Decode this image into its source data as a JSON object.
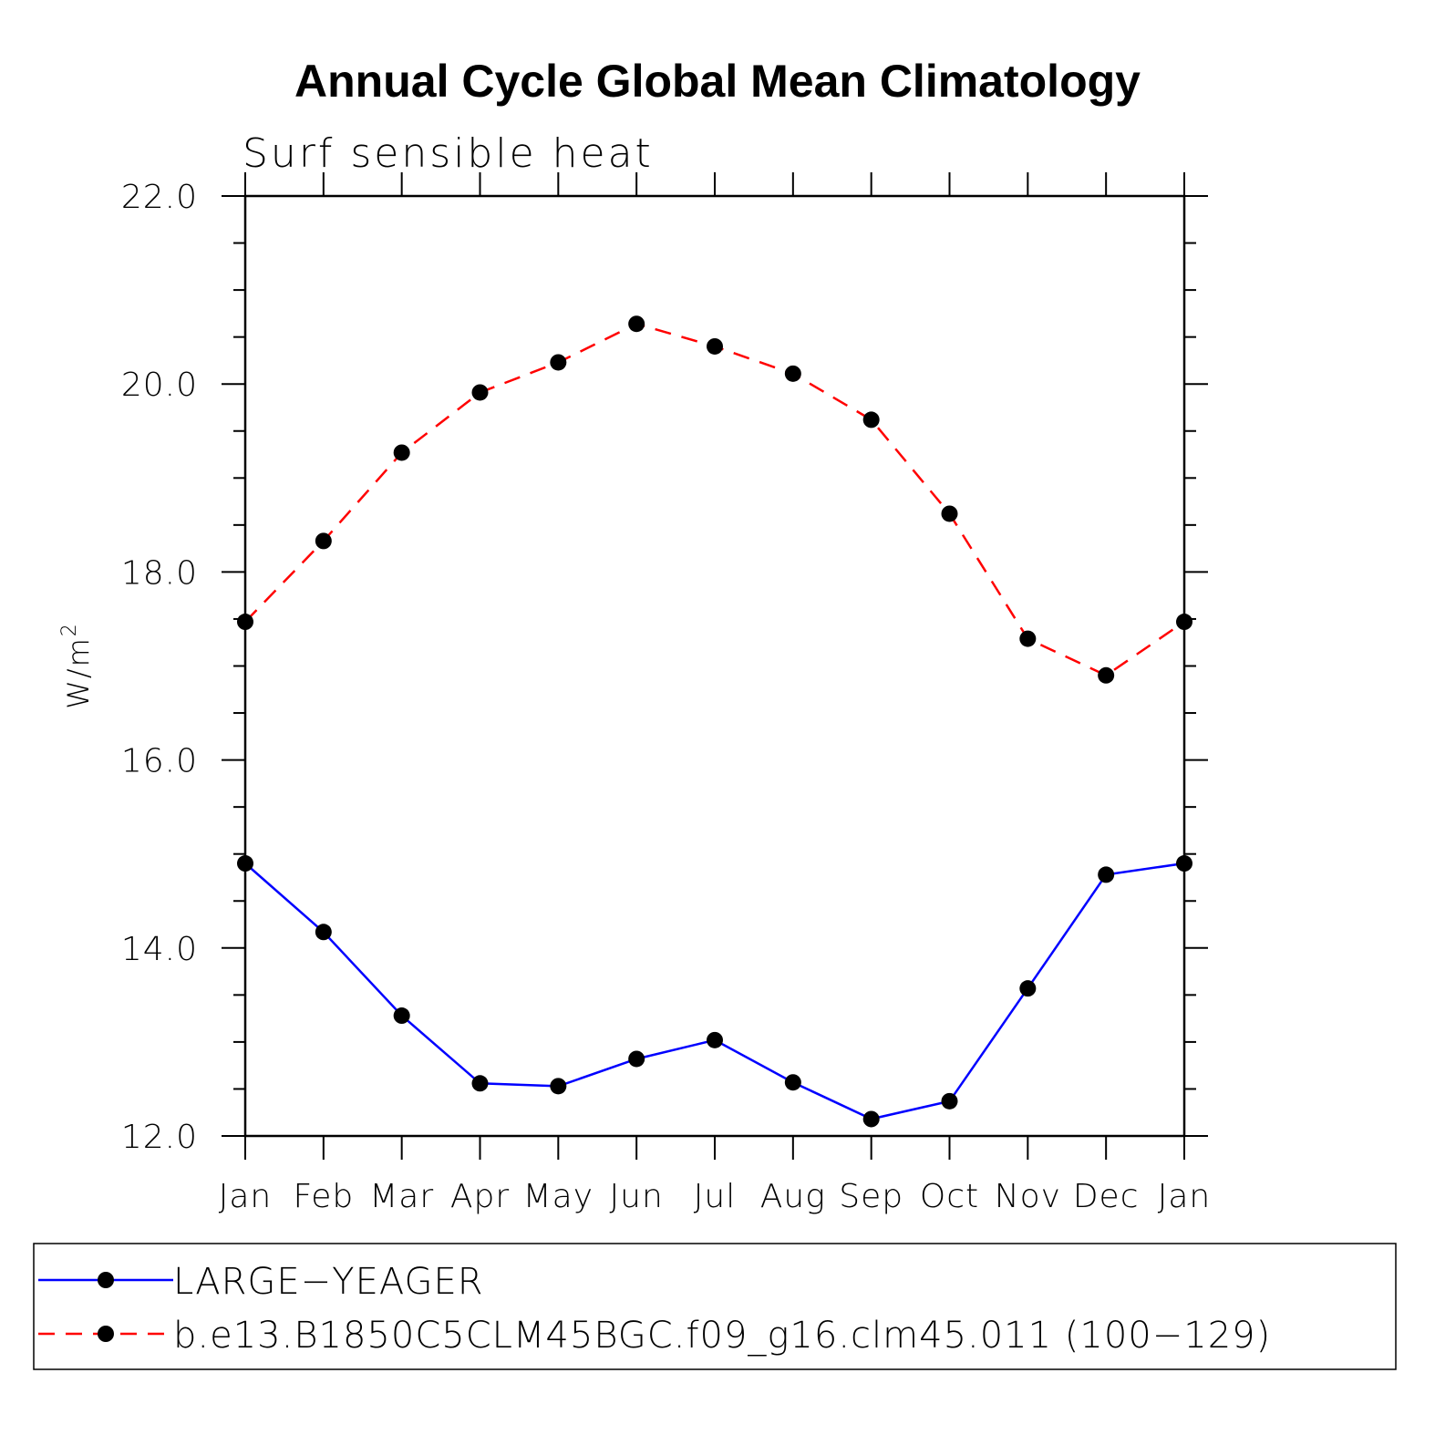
{
  "chart_data": {
    "type": "line",
    "title": "Annual Cycle Global Mean Climatology",
    "subtitle": "Surf sensible heat",
    "ylabel": "W/m",
    "ylabel_superscript": "2",
    "xlabel": "",
    "ylim": [
      12.0,
      22.0
    ],
    "yticks": [
      "12.0",
      "14.0",
      "16.0",
      "18.0",
      "20.0",
      "22.0"
    ],
    "categories": [
      "Jan",
      "Feb",
      "Mar",
      "Apr",
      "May",
      "Jun",
      "Jul",
      "Aug",
      "Sep",
      "Oct",
      "Nov",
      "Dec",
      "Jan"
    ],
    "series": [
      {
        "name": "LARGE−YEAGER",
        "color": "#0000ff",
        "dash": "solid",
        "marker": "circle",
        "values": [
          14.9,
          14.17,
          13.28,
          12.56,
          12.53,
          12.82,
          13.02,
          12.57,
          12.18,
          12.37,
          13.57,
          14.78,
          14.9
        ]
      },
      {
        "name": "b.e13.B1850C5CLM45BGC.f09_g16.clm45.011 (100−129)",
        "color": "#ff0000",
        "dash": "dashed",
        "marker": "circle",
        "values": [
          17.47,
          18.33,
          19.27,
          19.91,
          20.23,
          20.64,
          20.4,
          20.11,
          19.62,
          18.62,
          17.29,
          16.9,
          17.47
        ]
      }
    ],
    "legend_position": "bottom",
    "grid": false
  }
}
